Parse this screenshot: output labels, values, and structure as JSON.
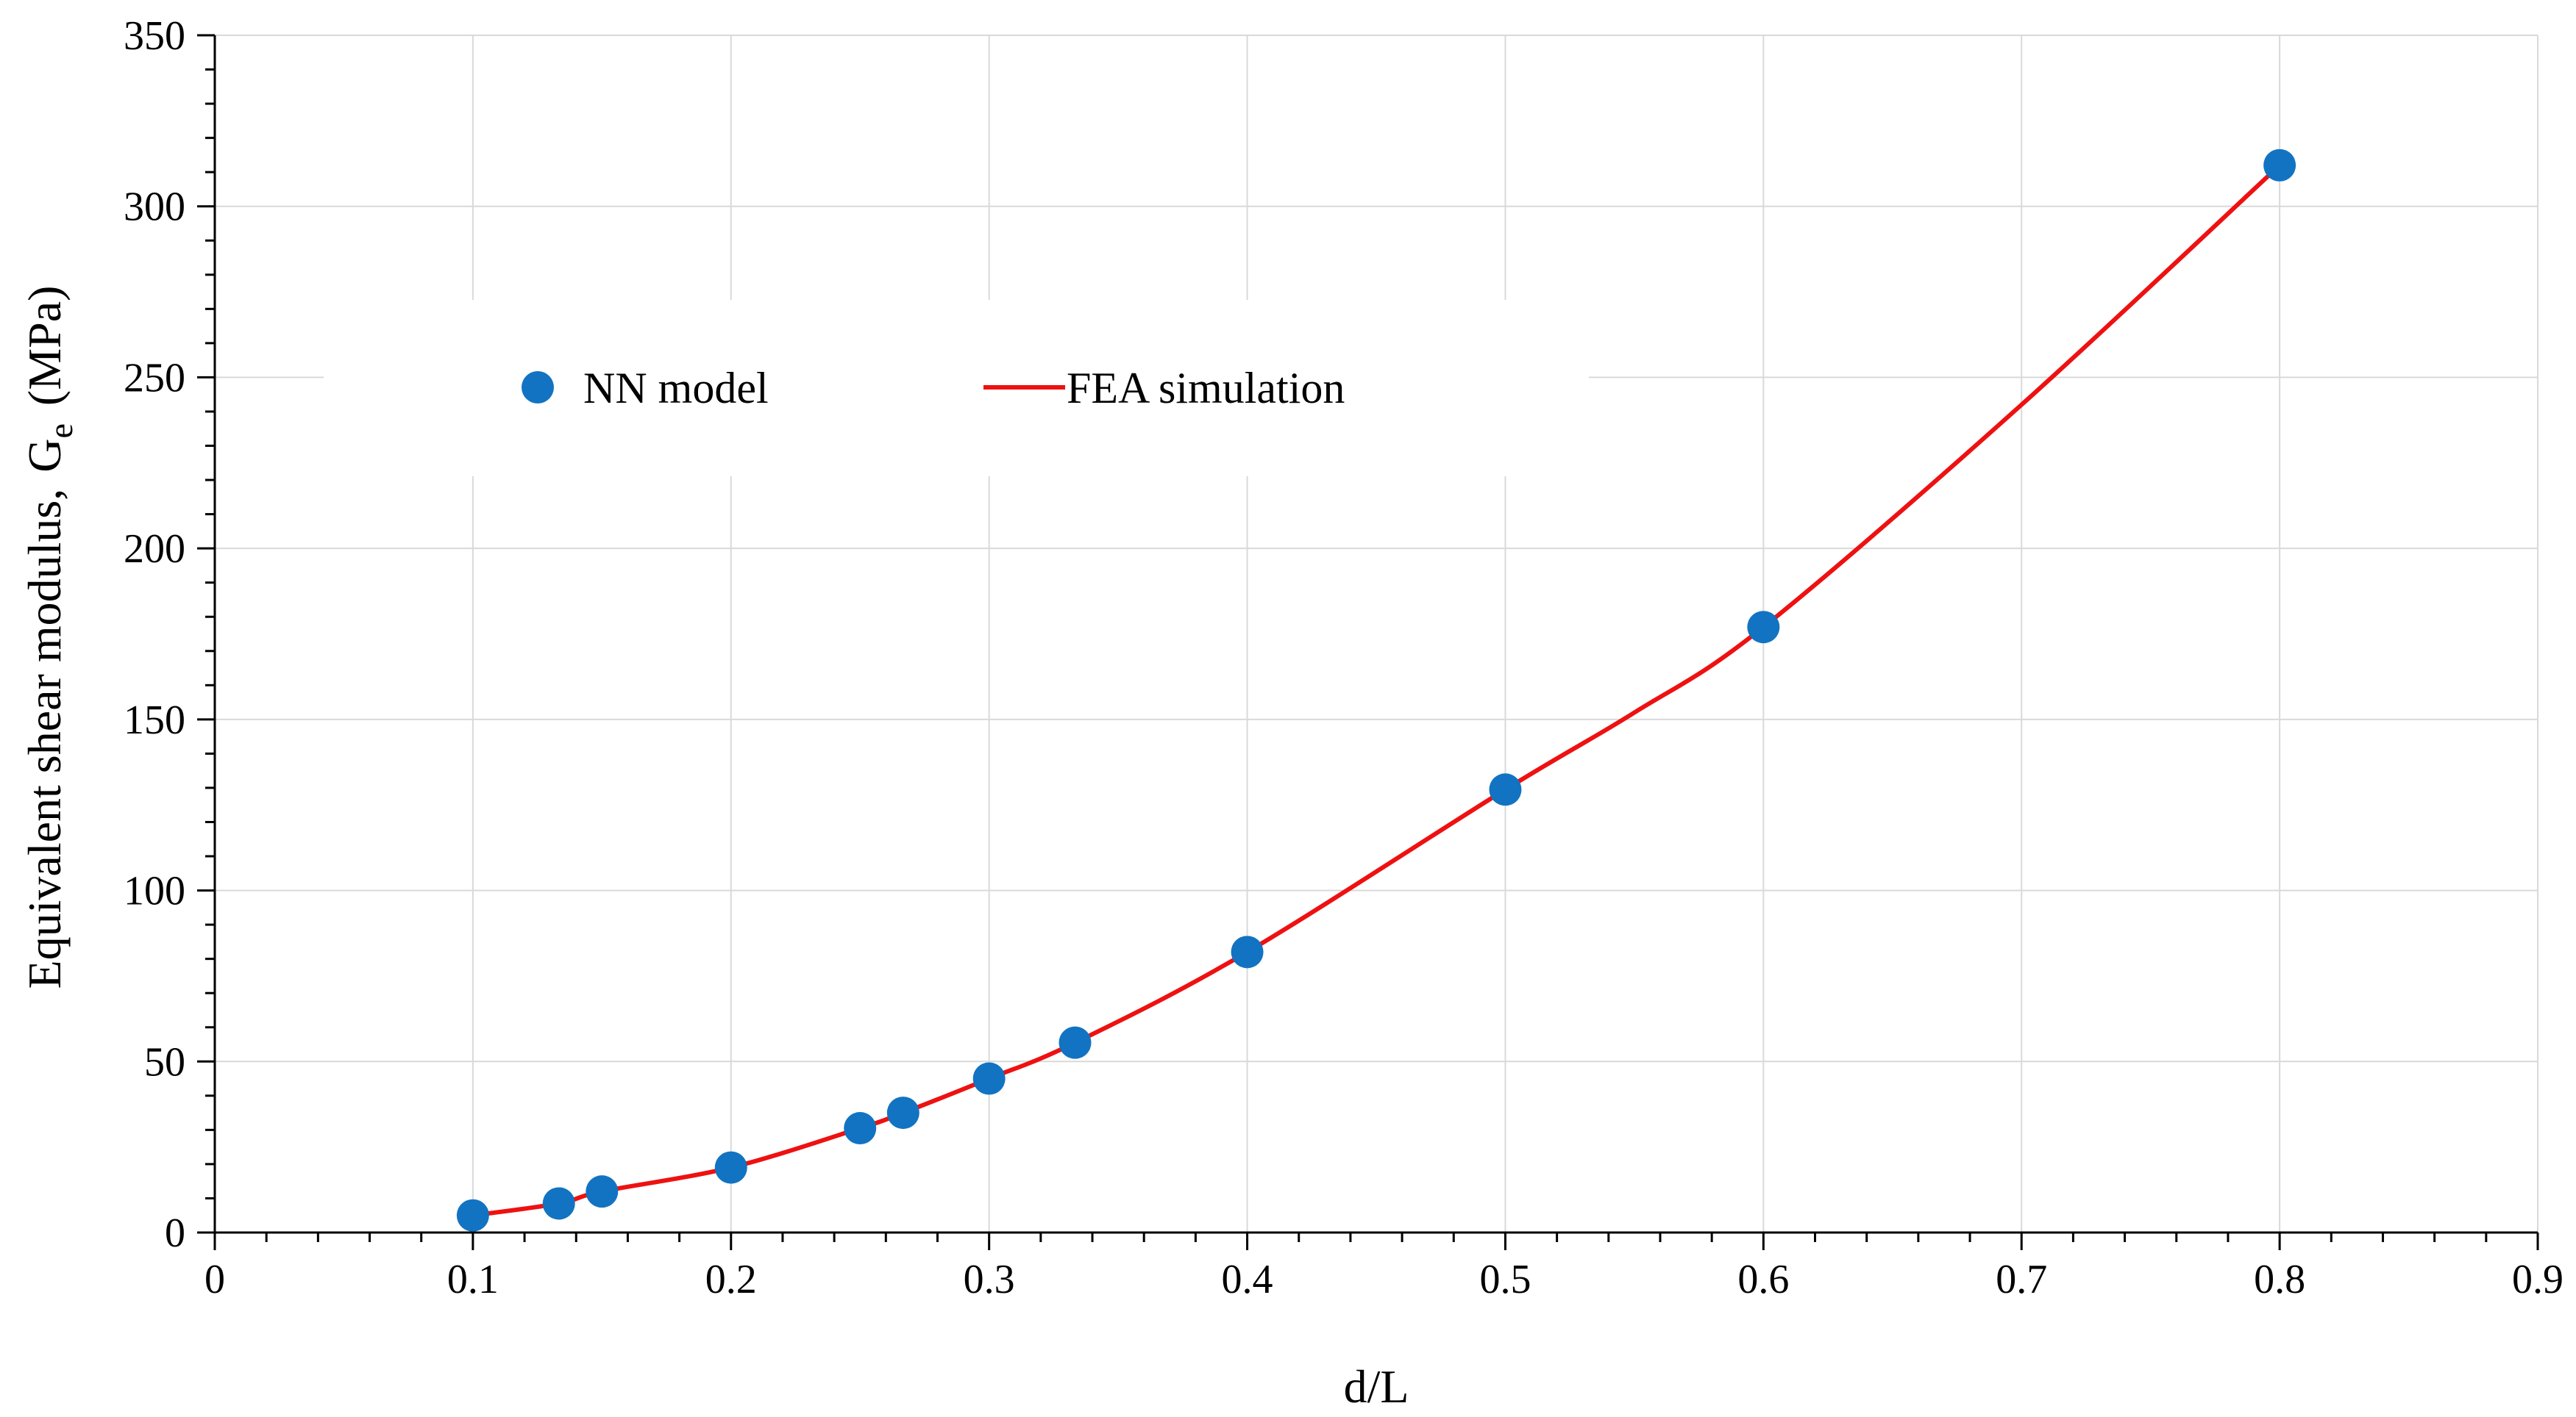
{
  "chart_data": {
    "type": "scatter",
    "title": "",
    "xlabel": "d/L",
    "ylabel": "Equivalent shear modulus,",
    "ylabel_symbol": "G",
    "ylabel_subscript": "e",
    "ylabel_unit": "(MPa)",
    "xlim": [
      0,
      0.9
    ],
    "ylim": [
      0,
      350
    ],
    "x_ticks": [
      "0",
      "0.1",
      "0.2",
      "0.3",
      "0.4",
      "0.5",
      "0.6",
      "0.7",
      "0.8",
      "0.9"
    ],
    "y_ticks": [
      "0",
      "50",
      "100",
      "150",
      "200",
      "250",
      "300",
      "350"
    ],
    "grid": true,
    "legend_position": "upper-left",
    "series": [
      {
        "name": "NN model",
        "kind": "markers",
        "color": "#1273C2",
        "x": [
          0.1,
          0.1333,
          0.15,
          0.2,
          0.25,
          0.2667,
          0.3,
          0.3333,
          0.4,
          0.5,
          0.6,
          0.8
        ],
        "y": [
          5,
          8.5,
          12,
          19,
          30.5,
          35,
          45,
          55.5,
          82,
          129.5,
          177,
          312
        ]
      },
      {
        "name": "FEA simulation",
        "kind": "line",
        "color": "#EE1111",
        "x": [
          0.1,
          0.1333,
          0.15,
          0.2,
          0.25,
          0.2667,
          0.3,
          0.3333,
          0.4,
          0.5,
          0.55,
          0.6,
          0.7,
          0.8
        ],
        "y": [
          5,
          8.5,
          12,
          19,
          30.5,
          35,
          45,
          55.5,
          82,
          129.5,
          152,
          177,
          242,
          312
        ]
      }
    ]
  }
}
